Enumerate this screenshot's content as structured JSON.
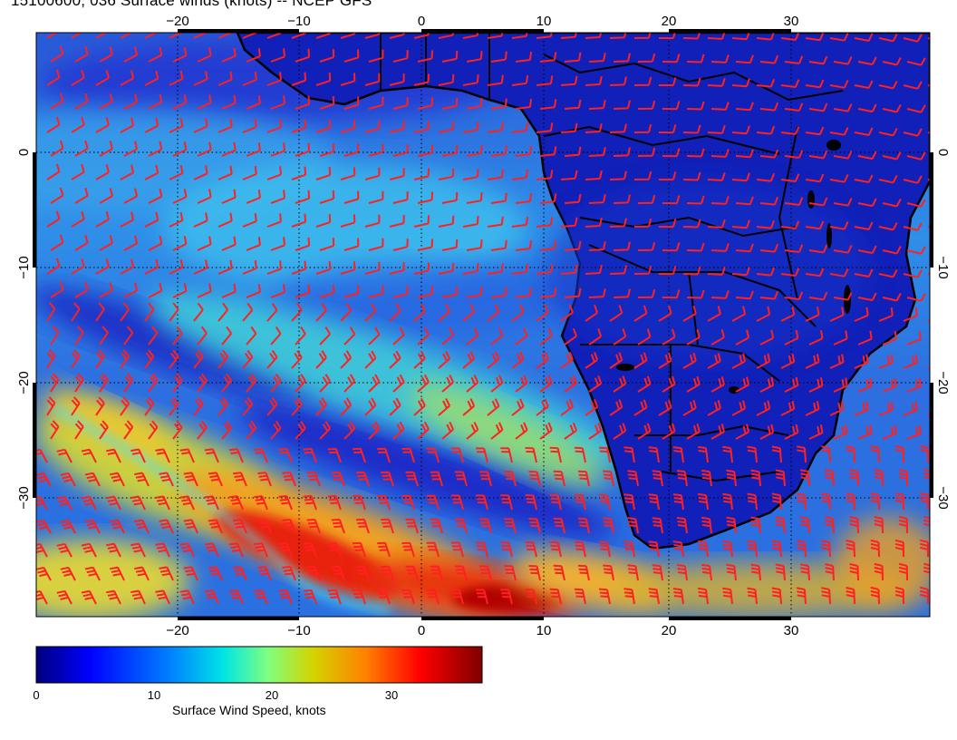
{
  "title": "15100600, 036 Surface winds (knots) -- NCEP GFS",
  "map": {
    "lon_range": [
      -30,
      41
    ],
    "lat_range": [
      -41,
      9
    ],
    "top_lon_ticks": [
      "−20",
      "−10",
      "0",
      "10",
      "20",
      "30"
    ],
    "bottom_lon_ticks": [
      "−20",
      "−10",
      "0",
      "10",
      "20",
      "30"
    ],
    "left_lat_ticks": [
      "0",
      "−10",
      "−20",
      "−30"
    ],
    "right_lat_ticks": [
      "0",
      "−10",
      "−20",
      "−30"
    ],
    "barb_color": "#ff2020",
    "coast_color": "#000000"
  },
  "colorbar": {
    "label": "Surface Wind Speed, knots",
    "ticks": [
      "0",
      "10",
      "20",
      "30"
    ],
    "range": [
      0,
      38
    ],
    "colors": [
      "#00007f",
      "#0000ff",
      "#0080ff",
      "#00e5e5",
      "#7fff7f",
      "#d4d400",
      "#ff8000",
      "#ff0000",
      "#7f0000"
    ]
  }
}
